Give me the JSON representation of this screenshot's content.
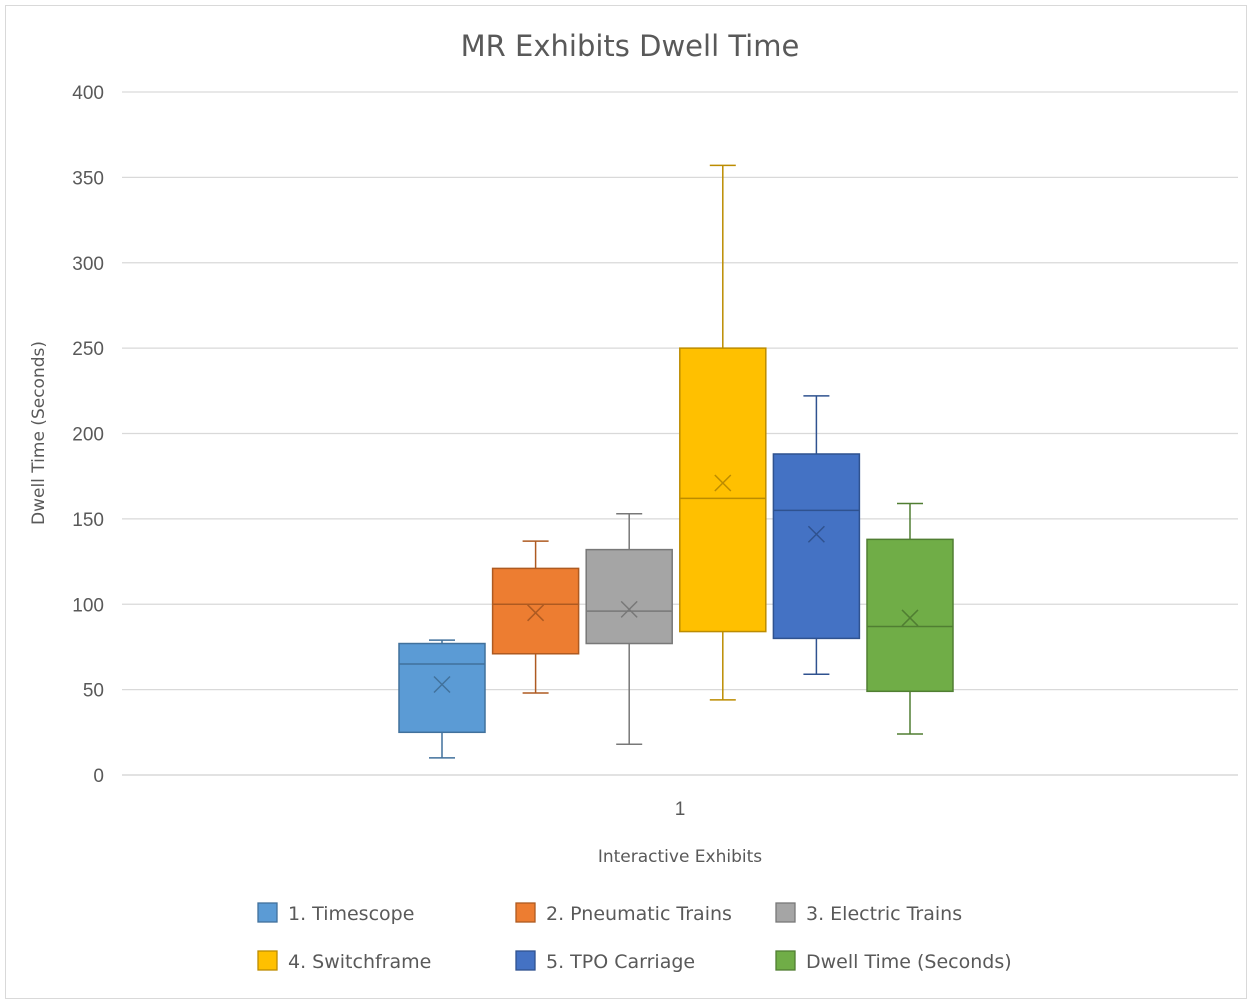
{
  "chart_data": {
    "type": "box",
    "title": "MR Exhibits Dwell Time",
    "xlabel": "Interactive Exhibits",
    "ylabel": "Dwell Time (Seconds)",
    "ylim": [
      0,
      400
    ],
    "yticks": [
      "0",
      "50",
      "100",
      "150",
      "200",
      "250",
      "300",
      "350",
      "400"
    ],
    "categories": [
      "1"
    ],
    "grid": true,
    "legend_position": "bottom",
    "series": [
      {
        "name": "1. Timescope",
        "color": "#5b9bd5",
        "stroke": "#41719c",
        "min": 10,
        "q1": 25,
        "median": 65,
        "q3": 77,
        "max": 79,
        "mean": 53
      },
      {
        "name": "2. Pneumatic Trains",
        "color": "#ed7d31",
        "stroke": "#ae5a21",
        "min": 48,
        "q1": 71,
        "median": 100,
        "q3": 121,
        "max": 137,
        "mean": 95
      },
      {
        "name": "3. Electric Trains",
        "color": "#a5a5a5",
        "stroke": "#787878",
        "min": 18,
        "q1": 77,
        "median": 96,
        "q3": 132,
        "max": 153,
        "mean": 97
      },
      {
        "name": "4. Switchframe",
        "color": "#ffc000",
        "stroke": "#bc8c00",
        "min": 44,
        "q1": 84,
        "median": 162,
        "q3": 250,
        "max": 357,
        "mean": 171
      },
      {
        "name": "5. TPO Carriage",
        "color": "#4472c4",
        "stroke": "#2f528f",
        "min": 59,
        "q1": 80,
        "median": 155,
        "q3": 188,
        "max": 222,
        "mean": 141
      },
      {
        "name": "Dwell Time (Seconds)",
        "color": "#70ad47",
        "stroke": "#507e32",
        "min": 24,
        "q1": 49,
        "median": 87,
        "q3": 138,
        "max": 159,
        "mean": 92
      }
    ]
  }
}
